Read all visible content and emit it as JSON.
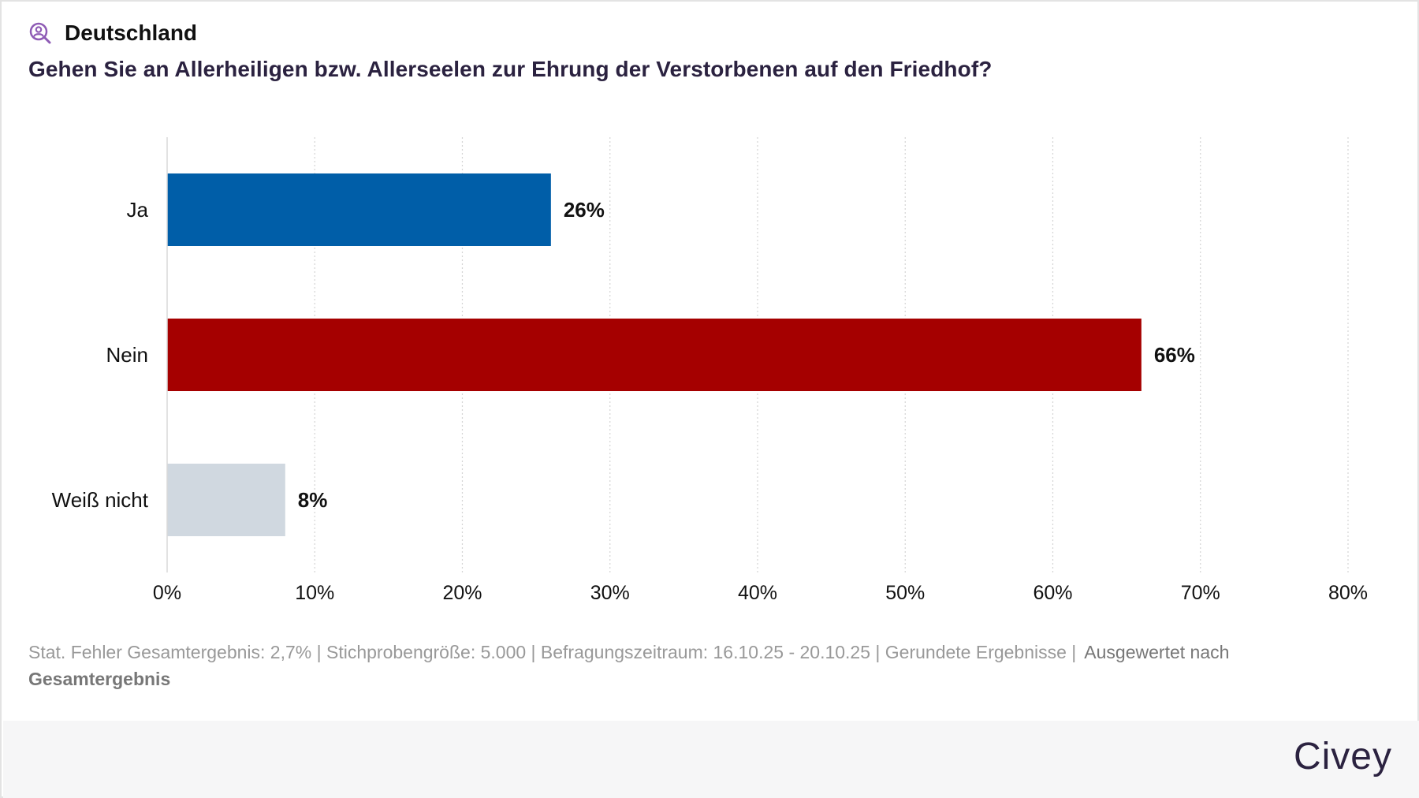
{
  "header": {
    "region": "Deutschland",
    "region_icon": "person-search-icon",
    "question": "Gehen Sie an Allerheiligen bzw. Allerseelen zur Ehrung der Verstorbenen auf den Friedhof?"
  },
  "chart_data": {
    "type": "bar",
    "orientation": "horizontal",
    "title": "Gehen Sie an Allerheiligen bzw. Allerseelen zur Ehrung der Verstorbenen auf den Friedhof?",
    "categories": [
      "Ja",
      "Nein",
      "Weiß nicht"
    ],
    "values": [
      26,
      66,
      8
    ],
    "value_labels": [
      "26%",
      "66%",
      "8%"
    ],
    "colors": [
      "#005ea8",
      "#a50000",
      "#d0d8e0"
    ],
    "xlim": [
      0,
      80
    ],
    "xticks": [
      0,
      10,
      20,
      30,
      40,
      50,
      60,
      70,
      80
    ],
    "xtick_labels": [
      "0%",
      "10%",
      "20%",
      "30%",
      "40%",
      "50%",
      "60%",
      "70%",
      "80%"
    ],
    "grid": true,
    "xlabel": "",
    "ylabel": ""
  },
  "footer": {
    "note": "Stat. Fehler Gesamtergebnis: 2,7% | Stichprobengröße: 5.000 | Befragungszeitraum: 16.10.25 - 20.10.25 | Gerundete Ergebnisse |",
    "group_prefix": "Ausgewertet nach",
    "group_value": "Gesamtergebnis"
  },
  "brand": "Civey",
  "colors": {
    "title": "#2b2240",
    "icon": "#8e5bb5",
    "footer_text": "#999999"
  }
}
